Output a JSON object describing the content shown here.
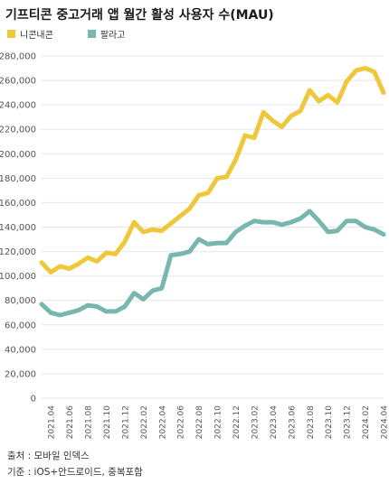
{
  "title": "기프티콘 중고거래 앱 월간 활성 사용자 수(MAU)",
  "footer": {
    "source": "출처 : 모바일 인덱스",
    "basis": "기준 : iOS+안드로이드, 중복포함"
  },
  "colors": {
    "nicon": "#EFC73A",
    "palago": "#78B7AE",
    "grid": "#E6E6E6",
    "axis_text": "#555555"
  },
  "chart_data": {
    "type": "line",
    "title": "기프티콘 중고거래 앱 월간 활성 사용자 수(MAU)",
    "xlabel": "",
    "ylabel": "",
    "ylim": [
      0,
      280000
    ],
    "yticks": [
      0,
      20000,
      40000,
      60000,
      80000,
      100000,
      120000,
      140000,
      160000,
      180000,
      200000,
      220000,
      240000,
      260000,
      280000
    ],
    "ytick_labels": [
      "0",
      "20,000",
      "40,000",
      "60,000",
      "80,000",
      "100,000",
      "120,000",
      "140,000",
      "160,000",
      "180,000",
      "200,000",
      "220,000",
      "240,000",
      "260,000",
      "280,000"
    ],
    "grid": true,
    "legend_position": "top-left",
    "x": [
      "2021.03",
      "2021.04",
      "2021.05",
      "2021.06",
      "2021.07",
      "2021.08",
      "2021.09",
      "2021.10",
      "2021.11",
      "2021.12",
      "2022.01",
      "2022.02",
      "2022.03",
      "2022.04",
      "2022.05",
      "2022.06",
      "2022.07",
      "2022.08",
      "2022.09",
      "2022.10",
      "2022.11",
      "2022.12",
      "2023.01",
      "2023.02",
      "2023.03",
      "2023.04",
      "2023.05",
      "2023.06",
      "2023.07",
      "2023.08",
      "2023.09",
      "2023.10",
      "2023.11",
      "2023.12",
      "2024.01",
      "2024.02",
      "2024.03",
      "2024.04"
    ],
    "xtick_labels": [
      "2021.04",
      "2021.06",
      "2021.08",
      "2021.10",
      "2021.12",
      "2022.02",
      "2022.04",
      "2022.06",
      "2022.08",
      "2022.10",
      "2022.12",
      "2023.02",
      "2023.04",
      "2023.06",
      "2023.08",
      "2023.10",
      "2023.12",
      "2024.02",
      "2024.04"
    ],
    "series": [
      {
        "name": "니콘내콘",
        "values": [
          111000,
          103000,
          108000,
          106000,
          110000,
          115000,
          112000,
          119000,
          118000,
          128000,
          144000,
          136000,
          138000,
          137000,
          143000,
          149000,
          155000,
          166000,
          168000,
          180000,
          181000,
          195000,
          215000,
          213000,
          234000,
          227000,
          222000,
          231000,
          235000,
          252000,
          243000,
          248000,
          242000,
          259000,
          268000,
          270000,
          267000,
          250000
        ]
      },
      {
        "name": "팔라고",
        "values": [
          77000,
          70000,
          68000,
          70000,
          72000,
          76000,
          75000,
          71000,
          71000,
          75000,
          86000,
          81000,
          88000,
          90000,
          117000,
          118000,
          120000,
          130000,
          126000,
          127000,
          127000,
          136000,
          141000,
          145000,
          144000,
          144000,
          142000,
          144000,
          147000,
          153000,
          145000,
          136000,
          137000,
          145000,
          145000,
          140000,
          138000,
          134000
        ]
      }
    ]
  }
}
